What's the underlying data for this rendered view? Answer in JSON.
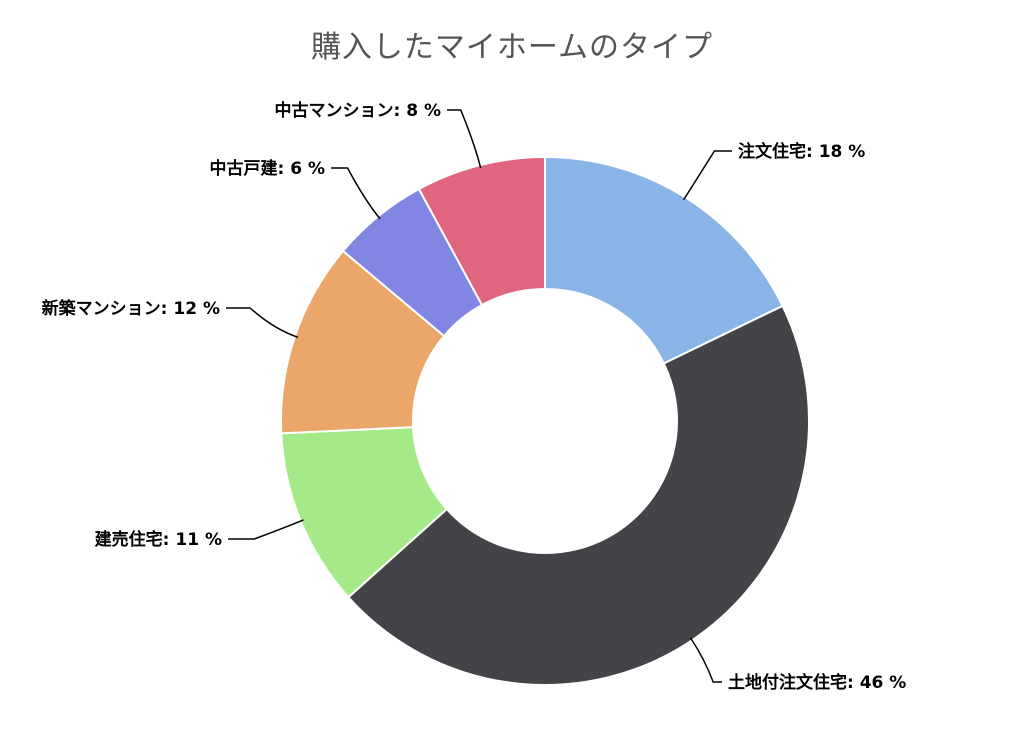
{
  "chart_data": {
    "type": "pie",
    "donut": true,
    "title": "購入したマイホームのタイプ",
    "value_suffix": " %",
    "slices": [
      {
        "label": "注文住宅",
        "value": 18,
        "color": "#89b4e8"
      },
      {
        "label": "土地付注文住宅",
        "value": 46,
        "color": "#434348"
      },
      {
        "label": "建売住宅",
        "value": 11,
        "color": "#a6e989"
      },
      {
        "label": "新築マンション",
        "value": 12,
        "color": "#eba66a"
      },
      {
        "label": "中古戸建",
        "value": 6,
        "color": "#8286e3"
      },
      {
        "label": "中古マンション",
        "value": 8,
        "color": "#e0667f"
      }
    ]
  }
}
